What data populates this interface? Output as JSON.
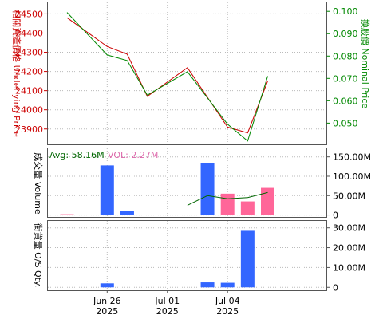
{
  "chart_data": {
    "type": "line",
    "x": [
      "Jun 24",
      "Jun 25",
      "Jun 26",
      "Jun 27",
      "Jun 30",
      "Jul 01",
      "Jul 02",
      "Jul 03",
      "Jul 04",
      "Jul 07",
      "Jul 08"
    ],
    "x_tick_labels": [
      {
        "x": "Jun 26",
        "line1": "Jun 26",
        "line2": "2025"
      },
      {
        "x": "Jul 01",
        "line1": "Jul 01",
        "line2": "2025"
      },
      {
        "x": "Jul 04",
        "line1": "Jul 04",
        "line2": "2025"
      }
    ],
    "price_panel": {
      "left_axis_label": "相關資產價格 Underlying Price",
      "right_axis_label": "換股價 Nominal Price",
      "left_ticks": [
        23900,
        24000,
        24100,
        24200,
        24300,
        24400,
        24500
      ],
      "right_ticks": [
        "0.050",
        "0.060",
        "0.070",
        "0.080",
        "0.090",
        "0.100"
      ],
      "left_range": [
        23820,
        24560
      ],
      "right_range": [
        0.0405,
        0.104
      ],
      "series": [
        {
          "key": "underlying",
          "axis": "left",
          "color": "#cc0000",
          "points": [
            {
              "x": "Jun 24",
              "y": 24480
            },
            {
              "x": "Jun 26",
              "y": 24330
            },
            {
              "x": "Jun 27",
              "y": 24290
            },
            {
              "x": "Jun 30",
              "y": 24070
            },
            {
              "x": "Jul 02",
              "y": 24220
            },
            {
              "x": "Jul 04",
              "y": 23910
            },
            {
              "x": "Jul 07",
              "y": 23880
            },
            {
              "x": "Jul 08",
              "y": 24150
            }
          ]
        },
        {
          "key": "nominal",
          "axis": "right",
          "color": "#008800",
          "points": [
            {
              "x": "Jun 24",
              "y": 0.0995
            },
            {
              "x": "Jun 26",
              "y": 0.0805
            },
            {
              "x": "Jun 27",
              "y": 0.078
            },
            {
              "x": "Jun 30",
              "y": 0.0625
            },
            {
              "x": "Jul 02",
              "y": 0.073
            },
            {
              "x": "Jul 04",
              "y": 0.0495
            },
            {
              "x": "Jul 07",
              "y": 0.042
            },
            {
              "x": "Jul 08",
              "y": 0.071
            }
          ]
        }
      ]
    },
    "volume_panel": {
      "left_axis_label": "成交量 Volume",
      "avg_label": "Avg: 58.16M",
      "vol_label": "VOL: 2.27M",
      "avg_color": "#006600",
      "vol_color": "#dd66aa",
      "ticks": [
        "0",
        "50.00M",
        "100.00M",
        "150.00M"
      ],
      "tick_values": [
        0,
        50,
        100,
        150
      ],
      "range": [
        -5,
        172
      ],
      "unit": "M",
      "bars": [
        {
          "x": "Jun 24",
          "value": 2,
          "color": "#ff6699"
        },
        {
          "x": "Jun 26",
          "value": 128,
          "color": "#3366ff"
        },
        {
          "x": "Jun 27",
          "value": 10,
          "color": "#3366ff"
        },
        {
          "x": "Jul 03",
          "value": 133,
          "color": "#3366ff"
        },
        {
          "x": "Jul 04",
          "value": 55,
          "color": "#ff6699"
        },
        {
          "x": "Jul 07",
          "value": 35,
          "color": "#ff6699"
        },
        {
          "x": "Jul 08",
          "value": 70,
          "color": "#ff6699"
        }
      ],
      "avg_line": {
        "color": "#006600",
        "points": [
          {
            "x": "Jul 02",
            "y": 25
          },
          {
            "x": "Jul 03",
            "y": 50
          },
          {
            "x": "Jul 04",
            "y": 42
          },
          {
            "x": "Jul 07",
            "y": 45
          },
          {
            "x": "Jul 08",
            "y": 58
          }
        ]
      }
    },
    "os_panel": {
      "left_axis_label": "街貨量 O/S Qty.",
      "ticks": [
        "0",
        "10.00M",
        "20.00M",
        "30.00M"
      ],
      "tick_values": [
        0,
        10,
        20,
        30
      ],
      "range": [
        -1.5,
        33.5
      ],
      "unit": "M",
      "bars": [
        {
          "x": "Jun 26",
          "value": 2,
          "color": "#3366ff"
        },
        {
          "x": "Jul 03",
          "value": 2.5,
          "color": "#3366ff"
        },
        {
          "x": "Jul 04",
          "value": 2.3,
          "color": "#3366ff"
        },
        {
          "x": "Jul 07",
          "value": 28.5,
          "color": "#3366ff"
        }
      ]
    },
    "grid": true,
    "grid_style": "dotted"
  }
}
